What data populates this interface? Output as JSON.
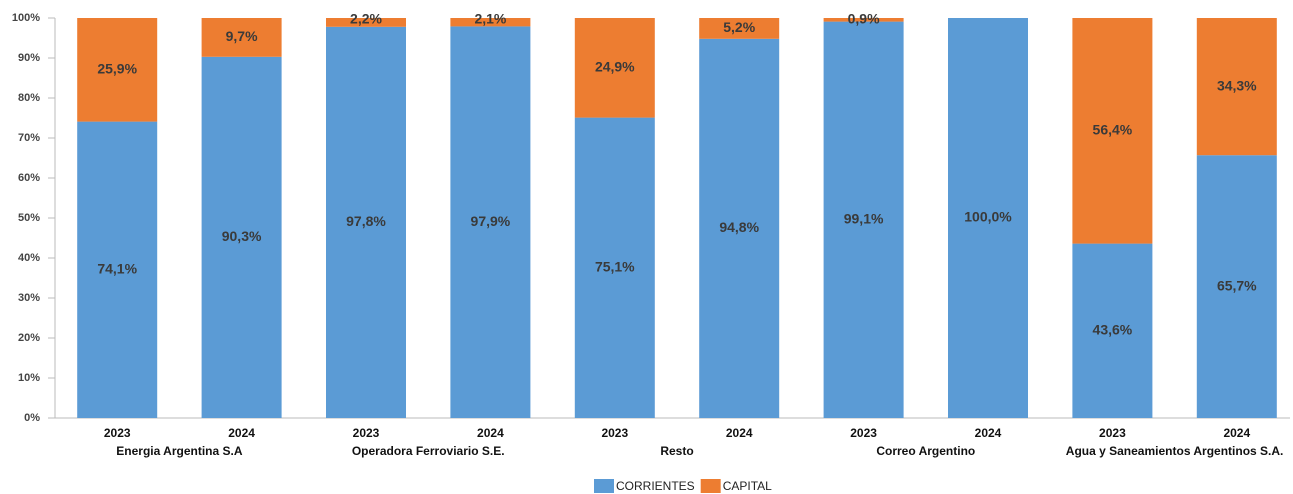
{
  "chart_data": {
    "type": "stacked_bar",
    "categories": [
      "2023",
      "2024",
      "2023",
      "2024",
      "2023",
      "2024",
      "2023",
      "2024",
      "2023",
      "2024"
    ],
    "groups": [
      "Energia Argentina S.A",
      "Operadora Ferroviario S.E.",
      "Resto",
      "Correo Argentino",
      "Agua y Saneamientos Argentinos S.A."
    ],
    "series": [
      {
        "name": "CORRIENTES",
        "color": "#5b9bd5",
        "values": [
          74.1,
          90.3,
          97.8,
          97.9,
          75.1,
          94.8,
          99.1,
          100.0,
          43.6,
          65.7
        ],
        "value_labels": [
          "74,1%",
          "90,3%",
          "97,8%",
          "97,9%",
          "75,1%",
          "94,8%",
          "99,1%",
          "100,0%",
          "43,6%",
          "65,7%"
        ]
      },
      {
        "name": "CAPITAL",
        "color": "#ed7d31",
        "values": [
          25.9,
          9.7,
          2.2,
          2.1,
          24.9,
          5.2,
          0.9,
          null,
          56.4,
          34.3
        ],
        "value_labels": [
          "25,9%",
          "9,7%",
          "2,2%",
          "2,1%",
          "24,9%",
          "5,2%",
          "0,9%",
          null,
          "56,4%",
          "34,3%"
        ]
      }
    ],
    "ylim": [
      0,
      100
    ],
    "yticks": [
      {
        "value": 0,
        "label": "0%"
      },
      {
        "value": 10,
        "label": "10%"
      },
      {
        "value": 20,
        "label": "20%"
      },
      {
        "value": 30,
        "label": "30%"
      },
      {
        "value": 40,
        "label": "40%"
      },
      {
        "value": 50,
        "label": "50%"
      },
      {
        "value": 60,
        "label": "60%"
      },
      {
        "value": 70,
        "label": "70%"
      },
      {
        "value": 80,
        "label": "80%"
      },
      {
        "value": 90,
        "label": "90%"
      },
      {
        "value": 100,
        "label": "100%"
      }
    ],
    "legend": "bottom"
  }
}
